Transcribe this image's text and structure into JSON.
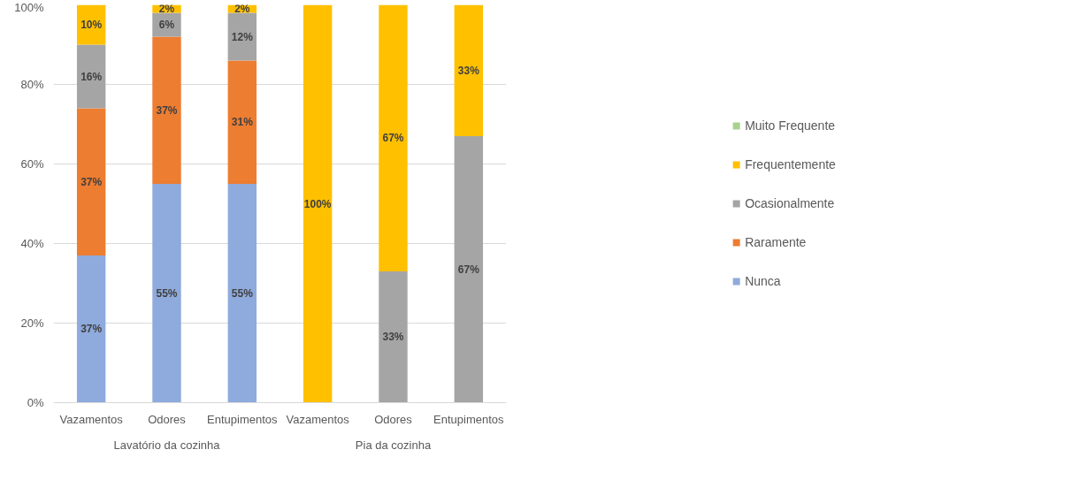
{
  "chart_data": {
    "type": "bar",
    "stacked": true,
    "categories": [
      "Vazamentos",
      "Odores",
      "Entupimentos",
      "Vazamentos",
      "Odores",
      "Entupimentos"
    ],
    "series": [
      {
        "name": "Nunca",
        "color": "#8faadc",
        "values": [
          37,
          55,
          55,
          0,
          0,
          0
        ],
        "value_labels": [
          "37%",
          "55%",
          "55%",
          null,
          null,
          null
        ]
      },
      {
        "name": "Raramente",
        "color": "#ed7d31",
        "values": [
          37,
          37,
          31,
          0,
          0,
          0
        ],
        "value_labels": [
          "37%",
          "37%",
          "31%",
          null,
          null,
          null
        ]
      },
      {
        "name": "Ocasionalmente",
        "color": "#a5a5a5",
        "values": [
          16,
          6,
          12,
          0,
          33,
          67
        ],
        "value_labels": [
          "16%",
          "6%",
          "12%",
          null,
          "33%",
          "67%"
        ]
      },
      {
        "name": "Frequentemente",
        "color": "#ffc000",
        "values": [
          10,
          2,
          2,
          100,
          67,
          33
        ],
        "value_labels": [
          "10%",
          "2%",
          "2%",
          "100%",
          "67%",
          "33%"
        ]
      },
      {
        "name": "Muito Frequente",
        "color": "#a9d18e",
        "values": [
          0,
          0,
          0,
          0,
          0,
          0
        ],
        "value_labels": [
          null,
          null,
          null,
          null,
          null,
          null
        ]
      }
    ],
    "ylim": [
      0,
      100
    ],
    "yticks": [
      {
        "value": 0,
        "label": "0%"
      },
      {
        "value": 20,
        "label": "20%"
      },
      {
        "value": 40,
        "label": "40%"
      },
      {
        "value": 60,
        "label": "60%"
      },
      {
        "value": 80,
        "label": "80%"
      },
      {
        "value": 100,
        "label": "100%"
      }
    ],
    "grid": "y",
    "legend": "right",
    "annotations": [
      "Lavatório da cozinha",
      "Pia da cozinha"
    ]
  }
}
